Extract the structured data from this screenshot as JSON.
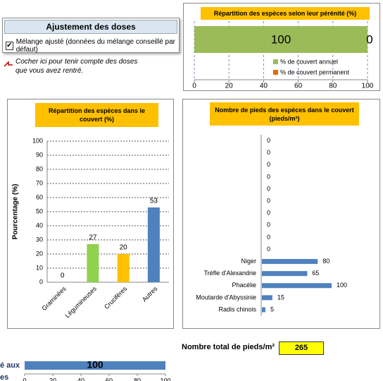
{
  "panel": {
    "title": "Ajustement des doses",
    "checkbox_label": "Mélange ajusté (données du mélange conseillé par défaut)",
    "checked": true
  },
  "note": [
    "Cocher ici pour tenir compte des doses",
    "que vous avez rentré."
  ],
  "total": {
    "label": "Nombre total de pieds/m²",
    "value": 265
  },
  "partial_label": [
    "é aux",
    "es"
  ],
  "chart_data": [
    {
      "type": "bar",
      "orientation": "horizontal",
      "stacked": true,
      "title": "Répartition des espèces selon leur pérénité (%)",
      "categories": [
        null
      ],
      "series": [
        {
          "name": "% de couvert annuel",
          "color": "#9bbb59",
          "values": [
            100
          ]
        },
        {
          "name": "% de couvert permanent",
          "color": "#e46c0a",
          "values": [
            0
          ]
        }
      ],
      "xlim": [
        0,
        100
      ],
      "xticks": [
        0,
        20,
        40,
        60,
        80,
        100
      ],
      "grid": true,
      "data_labels": true
    },
    {
      "type": "bar",
      "orientation": "vertical",
      "title": "Répartition des espèces dans le couvert (%)",
      "ylabel": "Pourcentage (%)",
      "categories": [
        "Graminées",
        "Légumineuses",
        "Crucifères",
        "Autres"
      ],
      "values": [
        0,
        27,
        20,
        53
      ],
      "colors": [
        "#4f81bd",
        "#92d050",
        "#ffc000",
        "#4f81bd"
      ],
      "ylim": [
        0,
        100
      ],
      "yticks": [
        0,
        10,
        20,
        30,
        40,
        50,
        60,
        70,
        80,
        90,
        100
      ],
      "grid": true,
      "data_labels": true
    },
    {
      "type": "bar",
      "orientation": "horizontal",
      "title": "Nombre de pieds des espèces dans le couvert (pieds/m²)",
      "categories": [
        "Radis chinois",
        "Moutarde d'Abyssinie",
        "Phacélie",
        "Trèfle d'Alexandrie",
        "Niger",
        null,
        null,
        null,
        null,
        null,
        null,
        null,
        null,
        null,
        null
      ],
      "values": [
        5,
        15,
        100,
        65,
        80,
        0,
        0,
        0,
        0,
        0,
        0,
        0,
        0,
        0,
        0
      ],
      "color": "#4f81bd",
      "data_labels": true
    },
    {
      "type": "bar",
      "orientation": "horizontal",
      "categories": [
        null
      ],
      "values": [
        100
      ],
      "color": "#4f81bd",
      "xlim": [
        0,
        100
      ],
      "xticks": [
        0,
        20,
        40,
        60,
        80,
        100
      ],
      "data_labels": true
    }
  ]
}
